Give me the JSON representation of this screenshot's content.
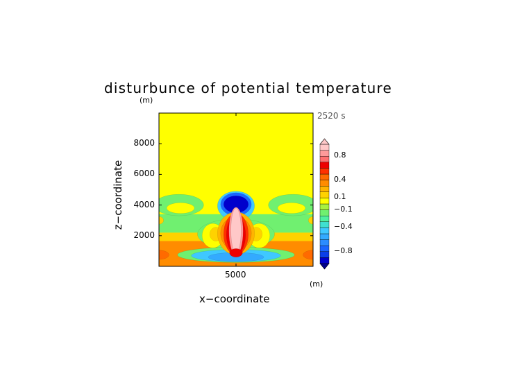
{
  "chart_data": {
    "type": "heatmap",
    "title": "disturbunce of potential temperature",
    "time_label": "2520 s",
    "xlabel": "x−coordinate",
    "ylabel": "z−coordinate",
    "x_unit": "(m)",
    "y_unit": "(m)",
    "xlim": [
      0,
      10000
    ],
    "ylim": [
      0,
      10000
    ],
    "x_ticks": [
      {
        "value": 5000,
        "label": "5000"
      }
    ],
    "y_ticks": [
      {
        "value": 2000,
        "label": "2000"
      },
      {
        "value": 4000,
        "label": "4000"
      },
      {
        "value": 6000,
        "label": "6000"
      },
      {
        "value": 8000,
        "label": "8000"
      }
    ],
    "colorbar": {
      "levels": [
        -1.0,
        -0.9,
        -0.8,
        -0.7,
        -0.6,
        -0.5,
        -0.4,
        -0.3,
        -0.2,
        -0.1,
        0.0,
        0.1,
        0.2,
        0.3,
        0.4,
        0.5,
        0.6,
        0.7,
        0.8,
        0.9,
        1.0
      ],
      "colors": [
        "#0000cc",
        "#0b3fe8",
        "#1a66ff",
        "#2b8cff",
        "#33aaff",
        "#3fc8ff",
        "#40e0d0",
        "#50f0a0",
        "#70f070",
        "#a8f040",
        "#ffff00",
        "#ffd200",
        "#ffb400",
        "#ff8c00",
        "#ff6a00",
        "#ff3000",
        "#ee0000",
        "#ff7070",
        "#ff9a9a",
        "#ffc8c8"
      ],
      "labels": [
        {
          "value": 0.8,
          "text": "0.8"
        },
        {
          "value": 0.4,
          "text": "0.4"
        },
        {
          "value": 0.1,
          "text": "0.1"
        },
        {
          "value": -0.1,
          "text": "−0.1"
        },
        {
          "value": -0.4,
          "text": "−0.4"
        },
        {
          "value": -0.8,
          "text": "−0.8"
        }
      ],
      "extend": "both"
    },
    "background_color": "#ffff00"
  }
}
